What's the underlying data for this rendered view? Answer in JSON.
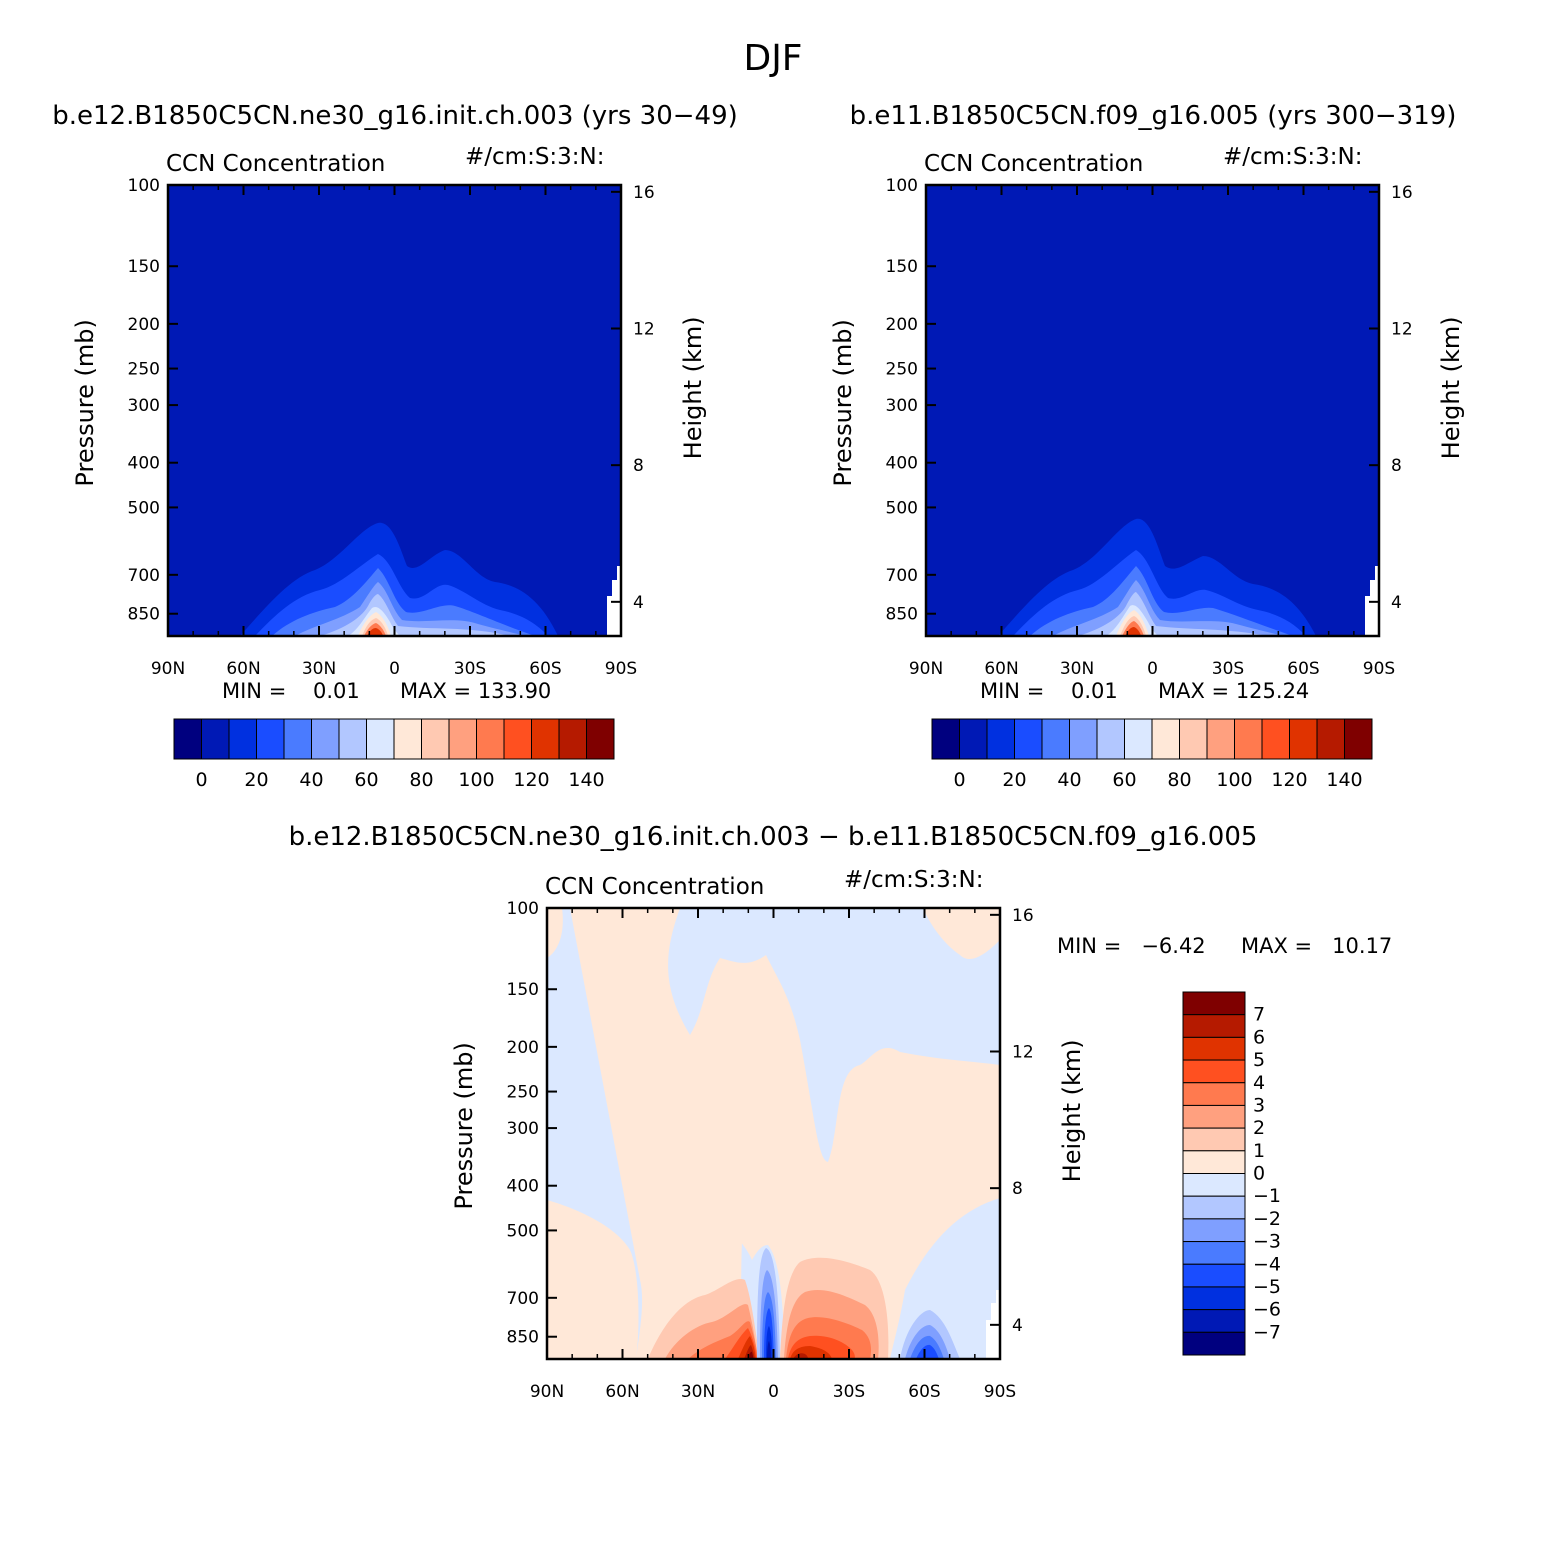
{
  "figure": {
    "title": "DJF",
    "diff_title": "b.e12.B1850C5CN.ne30_g16.init.ch.003 − b.e11.B1850C5CN.f09_g16.005"
  },
  "chart_data": [
    {
      "type": "heatmap",
      "subtitle": "b.e12.B1850C5CN.ne30_g16.init.ch.003 (yrs 30−49)",
      "title_left": "CCN Concentration",
      "title_right": "#/cm:S:3:N:",
      "xlabel": "",
      "ylabel": "Pressure (mb)",
      "y2label": "Height (km)",
      "x_ticks": [
        "90N",
        "60N",
        "30N",
        "0",
        "30S",
        "60S",
        "90S"
      ],
      "y_ticks": [
        "100",
        "150",
        "200",
        "250",
        "300",
        "400",
        "500",
        "700",
        "850"
      ],
      "y2_ticks": [
        "16",
        "12",
        "8",
        "4"
      ],
      "min_text": "MIN =    0.01",
      "max_text": "MAX = 133.90",
      "colorbar_labels": [
        "0",
        "20",
        "40",
        "60",
        "80",
        "100",
        "120",
        "140"
      ],
      "levels": [
        0,
        10,
        20,
        30,
        40,
        50,
        60,
        70,
        80,
        90,
        100,
        110,
        120,
        130,
        140
      ],
      "colors": [
        "#00007f",
        "#0019b5",
        "#0030e0",
        "#1a4dff",
        "#4a7bff",
        "#7f9fff",
        "#b2c7ff",
        "#dbe8ff",
        "#ffe8d8",
        "#ffc9b2",
        "#ffa07f",
        "#ff7a4f",
        "#ff5020",
        "#e03300",
        "#b51a00",
        "#7f0000"
      ]
    },
    {
      "type": "heatmap",
      "subtitle": "b.e11.B1850C5CN.f09_g16.005 (yrs 300−319)",
      "title_left": "CCN Concentration",
      "title_right": "#/cm:S:3:N:",
      "xlabel": "",
      "ylabel": "Pressure (mb)",
      "y2label": "Height (km)",
      "x_ticks": [
        "90N",
        "60N",
        "30N",
        "0",
        "30S",
        "60S",
        "90S"
      ],
      "y_ticks": [
        "100",
        "150",
        "200",
        "250",
        "300",
        "400",
        "500",
        "700",
        "850"
      ],
      "y2_ticks": [
        "16",
        "12",
        "8",
        "4"
      ],
      "min_text": "MIN =    0.01",
      "max_text": "MAX = 125.24",
      "colorbar_labels": [
        "0",
        "20",
        "40",
        "60",
        "80",
        "100",
        "120",
        "140"
      ],
      "levels": [
        0,
        10,
        20,
        30,
        40,
        50,
        60,
        70,
        80,
        90,
        100,
        110,
        120,
        130,
        140
      ],
      "colors": [
        "#00007f",
        "#0019b5",
        "#0030e0",
        "#1a4dff",
        "#4a7bff",
        "#7f9fff",
        "#b2c7ff",
        "#dbe8ff",
        "#ffe8d8",
        "#ffc9b2",
        "#ffa07f",
        "#ff7a4f",
        "#ff5020",
        "#e03300",
        "#b51a00",
        "#7f0000"
      ]
    },
    {
      "type": "heatmap",
      "title_left": "CCN Concentration",
      "title_right": "#/cm:S:3:N:",
      "xlabel": "",
      "ylabel": "Pressure (mb)",
      "y2label": "Height (km)",
      "x_ticks": [
        "90N",
        "60N",
        "30N",
        "0",
        "30S",
        "60S",
        "90S"
      ],
      "y_ticks": [
        "100",
        "150",
        "200",
        "250",
        "300",
        "400",
        "500",
        "700",
        "850"
      ],
      "y2_ticks": [
        "16",
        "12",
        "8",
        "4"
      ],
      "min_text": "MIN =   −6.42",
      "max_text": "MAX =   10.17",
      "colorbar_labels": [
        "7",
        "6",
        "5",
        "4",
        "3",
        "2",
        "1",
        "0",
        "−1",
        "−2",
        "−3",
        "−4",
        "−5",
        "−6",
        "−7"
      ],
      "colors": [
        "#7f0000",
        "#b51a00",
        "#e03300",
        "#ff5020",
        "#ff7a4f",
        "#ffa07f",
        "#ffc9b2",
        "#ffe8d8",
        "#dbe8ff",
        "#b2c7ff",
        "#7f9fff",
        "#4a7bff",
        "#1a4dff",
        "#0030e0",
        "#0019b5",
        "#00007f"
      ]
    }
  ]
}
